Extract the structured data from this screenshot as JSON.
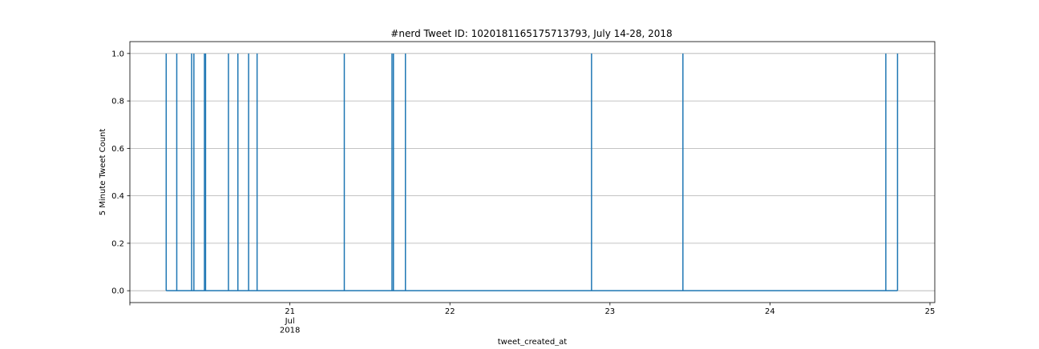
{
  "chart_data": {
    "type": "line",
    "title": "#nerd Tweet ID: 1020181165175713793, July 14-28, 2018",
    "xlabel": "tweet_created_at",
    "ylabel": "5 Minute Tweet Count",
    "ylim": [
      -0.05,
      1.05
    ],
    "xlim_days": [
      20.0,
      25.03
    ],
    "grid": "y-major",
    "yticks": [
      {
        "value": 0.0,
        "label": "0.0"
      },
      {
        "value": 0.2,
        "label": "0.2"
      },
      {
        "value": 0.4,
        "label": "0.4"
      },
      {
        "value": 0.6,
        "label": "0.6"
      },
      {
        "value": 0.8,
        "label": "0.8"
      },
      {
        "value": 1.0,
        "label": "1.0"
      }
    ],
    "xticks": [
      {
        "value": 20.0,
        "label": ""
      },
      {
        "value": 21.0,
        "label": "21",
        "sub": [
          "Jul",
          "2018"
        ]
      },
      {
        "value": 22.0,
        "label": "22"
      },
      {
        "value": 23.0,
        "label": "23"
      },
      {
        "value": 24.0,
        "label": "24"
      },
      {
        "value": 25.0,
        "label": "25"
      }
    ],
    "series": [
      {
        "color": "#1f77b4",
        "baseline_range": [
          20.227,
          24.797
        ],
        "spikes_at": [
          20.227,
          20.293,
          20.386,
          20.4,
          20.466,
          20.473,
          20.616,
          20.675,
          20.742,
          20.795,
          21.34,
          21.638,
          21.647,
          21.722,
          22.885,
          23.456,
          24.724,
          24.797
        ],
        "spike_value": 1
      }
    ]
  }
}
